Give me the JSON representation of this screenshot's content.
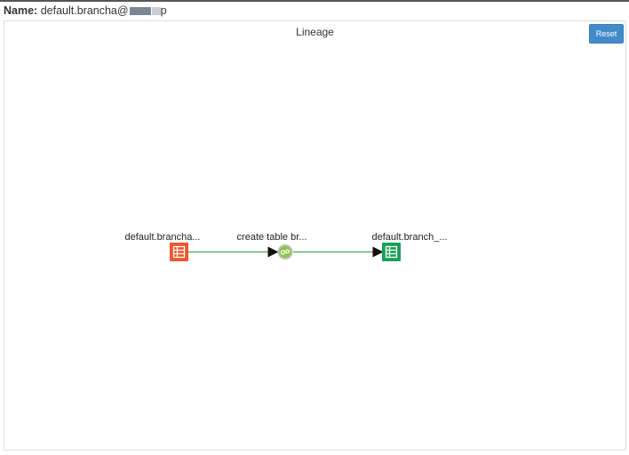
{
  "header": {
    "name_label": "Name:",
    "name_value": "default.brancha@",
    "name_suffix": "p"
  },
  "panel": {
    "title": "Lineage",
    "reset_label": "Reset"
  },
  "graph": {
    "nodes": [
      {
        "label": "default.brancha...",
        "type": "table",
        "color": "#f0542b",
        "icon": "table-icon"
      },
      {
        "label": "create table br...",
        "type": "process",
        "color": "#8bc34a",
        "icon": "gears-icon"
      },
      {
        "label": "default.branch_...",
        "type": "table",
        "color": "#1a9f55",
        "icon": "table-icon"
      }
    ],
    "edge_color": "#5cb85c"
  }
}
